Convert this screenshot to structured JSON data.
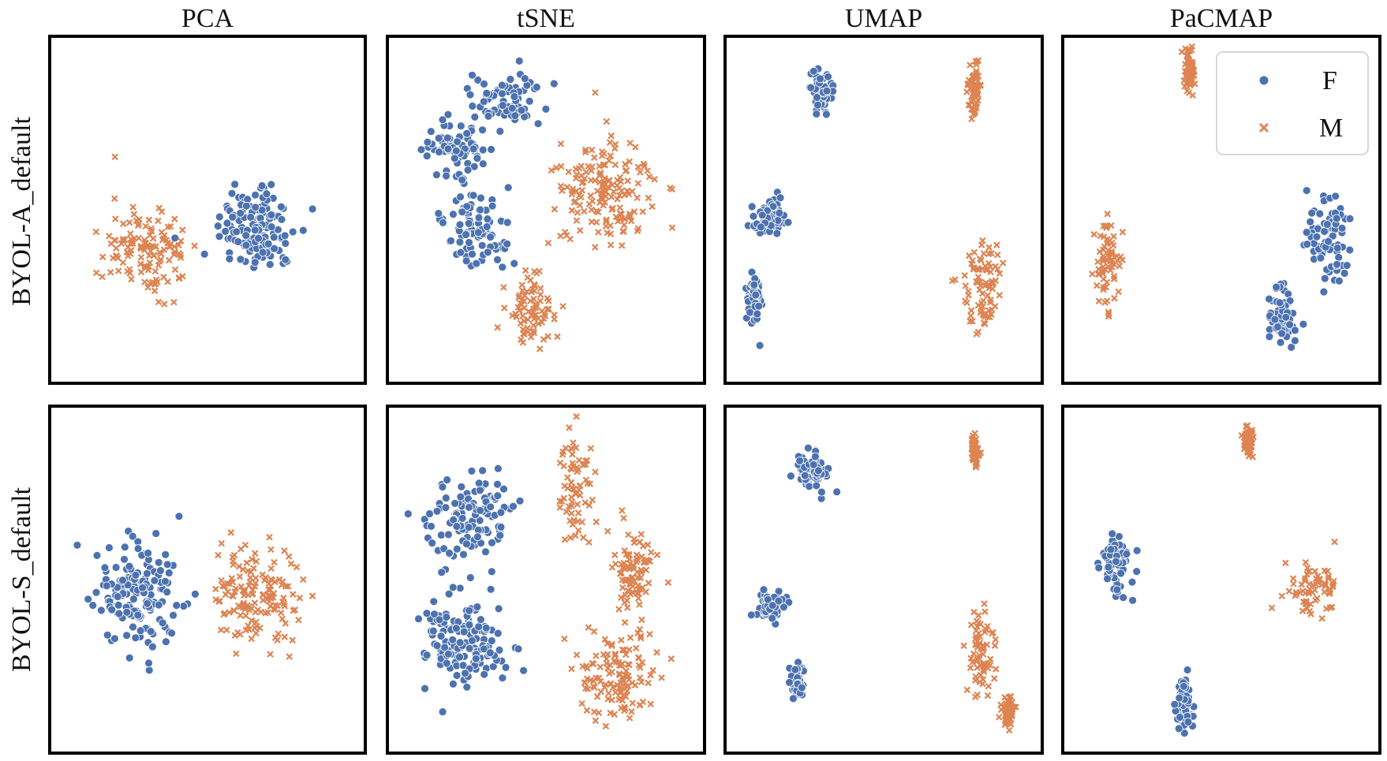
{
  "figure": {
    "column_titles": [
      "PCA",
      "tSNE",
      "UMAP",
      "PaCMAP"
    ],
    "row_labels": [
      "BYOL-A_default",
      "BYOL-S_default"
    ]
  },
  "legend": {
    "entries": [
      {
        "label": "F",
        "marker": "circle",
        "color": "#4c72b0"
      },
      {
        "label": "M",
        "marker": "x",
        "color": "#dd8452"
      }
    ]
  },
  "chart_data": [
    {
      "type": "scatter",
      "row": "BYOL-A_default",
      "method": "PCA",
      "axes": "hidden",
      "grid": false,
      "series": [
        {
          "name": "F",
          "color": "#4c72b0",
          "marker": "circle",
          "clusters": [
            {
              "center": [
                0.66,
                0.55
              ],
              "spread": [
                0.12,
                0.13
              ],
              "density": "dense"
            }
          ]
        },
        {
          "name": "M",
          "color": "#dd8452",
          "marker": "x",
          "clusters": [
            {
              "center": [
                0.3,
                0.62
              ],
              "spread": [
                0.12,
                0.12
              ],
              "density": "dense"
            }
          ]
        }
      ]
    },
    {
      "type": "scatter",
      "row": "BYOL-A_default",
      "method": "tSNE",
      "axes": "hidden",
      "grid": false,
      "series": [
        {
          "name": "F",
          "color": "#4c72b0",
          "marker": "circle",
          "clusters": [
            {
              "center": [
                0.22,
                0.32
              ],
              "spread": [
                0.09,
                0.08
              ],
              "density": "dense"
            },
            {
              "center": [
                0.36,
                0.17
              ],
              "spread": [
                0.11,
                0.07
              ],
              "density": "dense"
            },
            {
              "center": [
                0.28,
                0.55
              ],
              "spread": [
                0.1,
                0.1
              ],
              "density": "dense"
            }
          ]
        },
        {
          "name": "M",
          "color": "#dd8452",
          "marker": "x",
          "clusters": [
            {
              "center": [
                0.7,
                0.45
              ],
              "spread": [
                0.13,
                0.14
              ],
              "density": "dense"
            },
            {
              "center": [
                0.45,
                0.78
              ],
              "spread": [
                0.08,
                0.11
              ],
              "density": "dense"
            }
          ]
        }
      ]
    },
    {
      "type": "scatter",
      "row": "BYOL-A_default",
      "method": "UMAP",
      "axes": "hidden",
      "grid": false,
      "series": [
        {
          "name": "F",
          "color": "#4c72b0",
          "marker": "circle",
          "clusters": [
            {
              "center": [
                0.3,
                0.15
              ],
              "spread": [
                0.03,
                0.05
              ],
              "density": "dense"
            },
            {
              "center": [
                0.13,
                0.52
              ],
              "spread": [
                0.05,
                0.05
              ],
              "density": "dense"
            },
            {
              "center": [
                0.08,
                0.77
              ],
              "spread": [
                0.02,
                0.07
              ],
              "density": "dense"
            }
          ]
        },
        {
          "name": "M",
          "color": "#dd8452",
          "marker": "x",
          "clusters": [
            {
              "center": [
                0.8,
                0.14
              ],
              "spread": [
                0.015,
                0.08
              ],
              "density": "dense"
            },
            {
              "center": [
                0.83,
                0.72
              ],
              "spread": [
                0.07,
                0.13
              ],
              "density": "dense"
            }
          ]
        }
      ]
    },
    {
      "type": "scatter",
      "row": "BYOL-A_default",
      "method": "PaCMAP",
      "axes": "hidden",
      "grid": false,
      "series": [
        {
          "name": "F",
          "color": "#4c72b0",
          "marker": "circle",
          "clusters": [
            {
              "center": [
                0.86,
                0.6
              ],
              "spread": [
                0.07,
                0.12
              ],
              "density": "dense"
            },
            {
              "center": [
                0.7,
                0.82
              ],
              "spread": [
                0.04,
                0.08
              ],
              "density": "dense"
            }
          ]
        },
        {
          "name": "M",
          "color": "#dd8452",
          "marker": "x",
          "clusters": [
            {
              "center": [
                0.4,
                0.09
              ],
              "spread": [
                0.015,
                0.05
              ],
              "density": "dense"
            },
            {
              "center": [
                0.13,
                0.65
              ],
              "spread": [
                0.04,
                0.12
              ],
              "density": "dense"
            }
          ]
        }
      ]
    },
    {
      "type": "scatter",
      "row": "BYOL-S_default",
      "method": "PCA",
      "axes": "hidden",
      "grid": false,
      "series": [
        {
          "name": "F",
          "color": "#4c72b0",
          "marker": "circle",
          "clusters": [
            {
              "center": [
                0.27,
                0.55
              ],
              "spread": [
                0.12,
                0.15
              ],
              "density": "dense"
            }
          ]
        },
        {
          "name": "M",
          "color": "#dd8452",
          "marker": "x",
          "clusters": [
            {
              "center": [
                0.66,
                0.55
              ],
              "spread": [
                0.13,
                0.13
              ],
              "density": "dense"
            }
          ]
        }
      ]
    },
    {
      "type": "scatter",
      "row": "BYOL-S_default",
      "method": "tSNE",
      "axes": "hidden",
      "grid": false,
      "series": [
        {
          "name": "F",
          "color": "#4c72b0",
          "marker": "circle",
          "clusters": [
            {
              "center": [
                0.25,
                0.32
              ],
              "spread": [
                0.12,
                0.11
              ],
              "density": "dense"
            },
            {
              "center": [
                0.24,
                0.68
              ],
              "spread": [
                0.12,
                0.14
              ],
              "density": "dense"
            }
          ]
        },
        {
          "name": "M",
          "color": "#dd8452",
          "marker": "x",
          "clusters": [
            {
              "center": [
                0.6,
                0.24
              ],
              "spread": [
                0.05,
                0.14
              ],
              "density": "dense"
            },
            {
              "center": [
                0.78,
                0.47
              ],
              "spread": [
                0.08,
                0.12
              ],
              "density": "dense"
            },
            {
              "center": [
                0.74,
                0.79
              ],
              "spread": [
                0.12,
                0.12
              ],
              "density": "dense"
            }
          ]
        }
      ]
    },
    {
      "type": "scatter",
      "row": "BYOL-S_default",
      "method": "UMAP",
      "axes": "hidden",
      "grid": false,
      "series": [
        {
          "name": "F",
          "color": "#4c72b0",
          "marker": "circle",
          "clusters": [
            {
              "center": [
                0.27,
                0.18
              ],
              "spread": [
                0.04,
                0.05
              ],
              "density": "dense"
            },
            {
              "center": [
                0.13,
                0.57
              ],
              "spread": [
                0.05,
                0.04
              ],
              "density": "dense"
            },
            {
              "center": [
                0.22,
                0.8
              ],
              "spread": [
                0.015,
                0.04
              ],
              "density": "dense"
            }
          ]
        },
        {
          "name": "M",
          "color": "#dd8452",
          "marker": "x",
          "clusters": [
            {
              "center": [
                0.8,
                0.12
              ],
              "spread": [
                0.012,
                0.04
              ],
              "density": "dense"
            },
            {
              "center": [
                0.82,
                0.72
              ],
              "spread": [
                0.04,
                0.11
              ],
              "density": "dense"
            },
            {
              "center": [
                0.91,
                0.89
              ],
              "spread": [
                0.02,
                0.04
              ],
              "density": "dense"
            }
          ]
        }
      ]
    },
    {
      "type": "scatter",
      "row": "BYOL-S_default",
      "method": "PaCMAP",
      "axes": "hidden",
      "grid": false,
      "series": [
        {
          "name": "F",
          "color": "#4c72b0",
          "marker": "circle",
          "clusters": [
            {
              "center": [
                0.16,
                0.45
              ],
              "spread": [
                0.05,
                0.09
              ],
              "density": "dense"
            },
            {
              "center": [
                0.38,
                0.87
              ],
              "spread": [
                0.025,
                0.06
              ],
              "density": "dense"
            }
          ]
        },
        {
          "name": "M",
          "color": "#dd8452",
          "marker": "x",
          "clusters": [
            {
              "center": [
                0.59,
                0.09
              ],
              "spread": [
                0.015,
                0.03
              ],
              "density": "dense"
            },
            {
              "center": [
                0.8,
                0.52
              ],
              "spread": [
                0.08,
                0.07
              ],
              "density": "dense"
            }
          ]
        }
      ]
    }
  ]
}
